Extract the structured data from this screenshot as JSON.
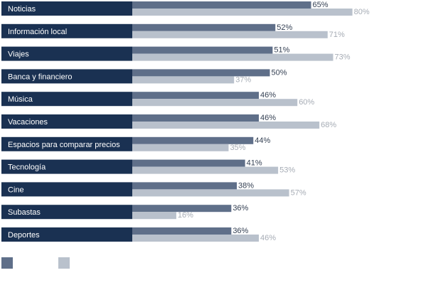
{
  "chart_data": {
    "type": "bar",
    "orientation": "horizontal",
    "categories": [
      "Noticias",
      "Información local",
      "Viajes",
      "Banca y financiero",
      "Música",
      "Vacaciones",
      "Espacios para comparar precios",
      "Tecnología",
      "Cine",
      "Subastas",
      "Deportes"
    ],
    "series": [
      {
        "values": [
          65,
          52,
          51,
          50,
          46,
          46,
          44,
          41,
          38,
          36,
          36
        ],
        "labels": [
          "65%",
          "52%",
          "51%",
          "50%",
          "46%",
          "46%",
          "44%",
          "41%",
          "38%",
          "36%",
          "36%"
        ],
        "color": "#5f6f89",
        "label_color": "#333f52"
      },
      {
        "values": [
          80,
          71,
          73,
          37,
          60,
          68,
          35,
          53,
          57,
          16,
          46
        ],
        "labels": [
          "80%",
          "71%",
          "73%",
          "37%",
          "60%",
          "68%",
          "35%",
          "53%",
          "57%",
          "16%",
          "46%"
        ],
        "color": "#b9c1cc",
        "label_color": "#a6acb5"
      }
    ],
    "category_box_color": "#1a3152",
    "xlim": [
      0,
      100
    ],
    "axis": "none",
    "grid": false,
    "legend": "bottom-left"
  }
}
